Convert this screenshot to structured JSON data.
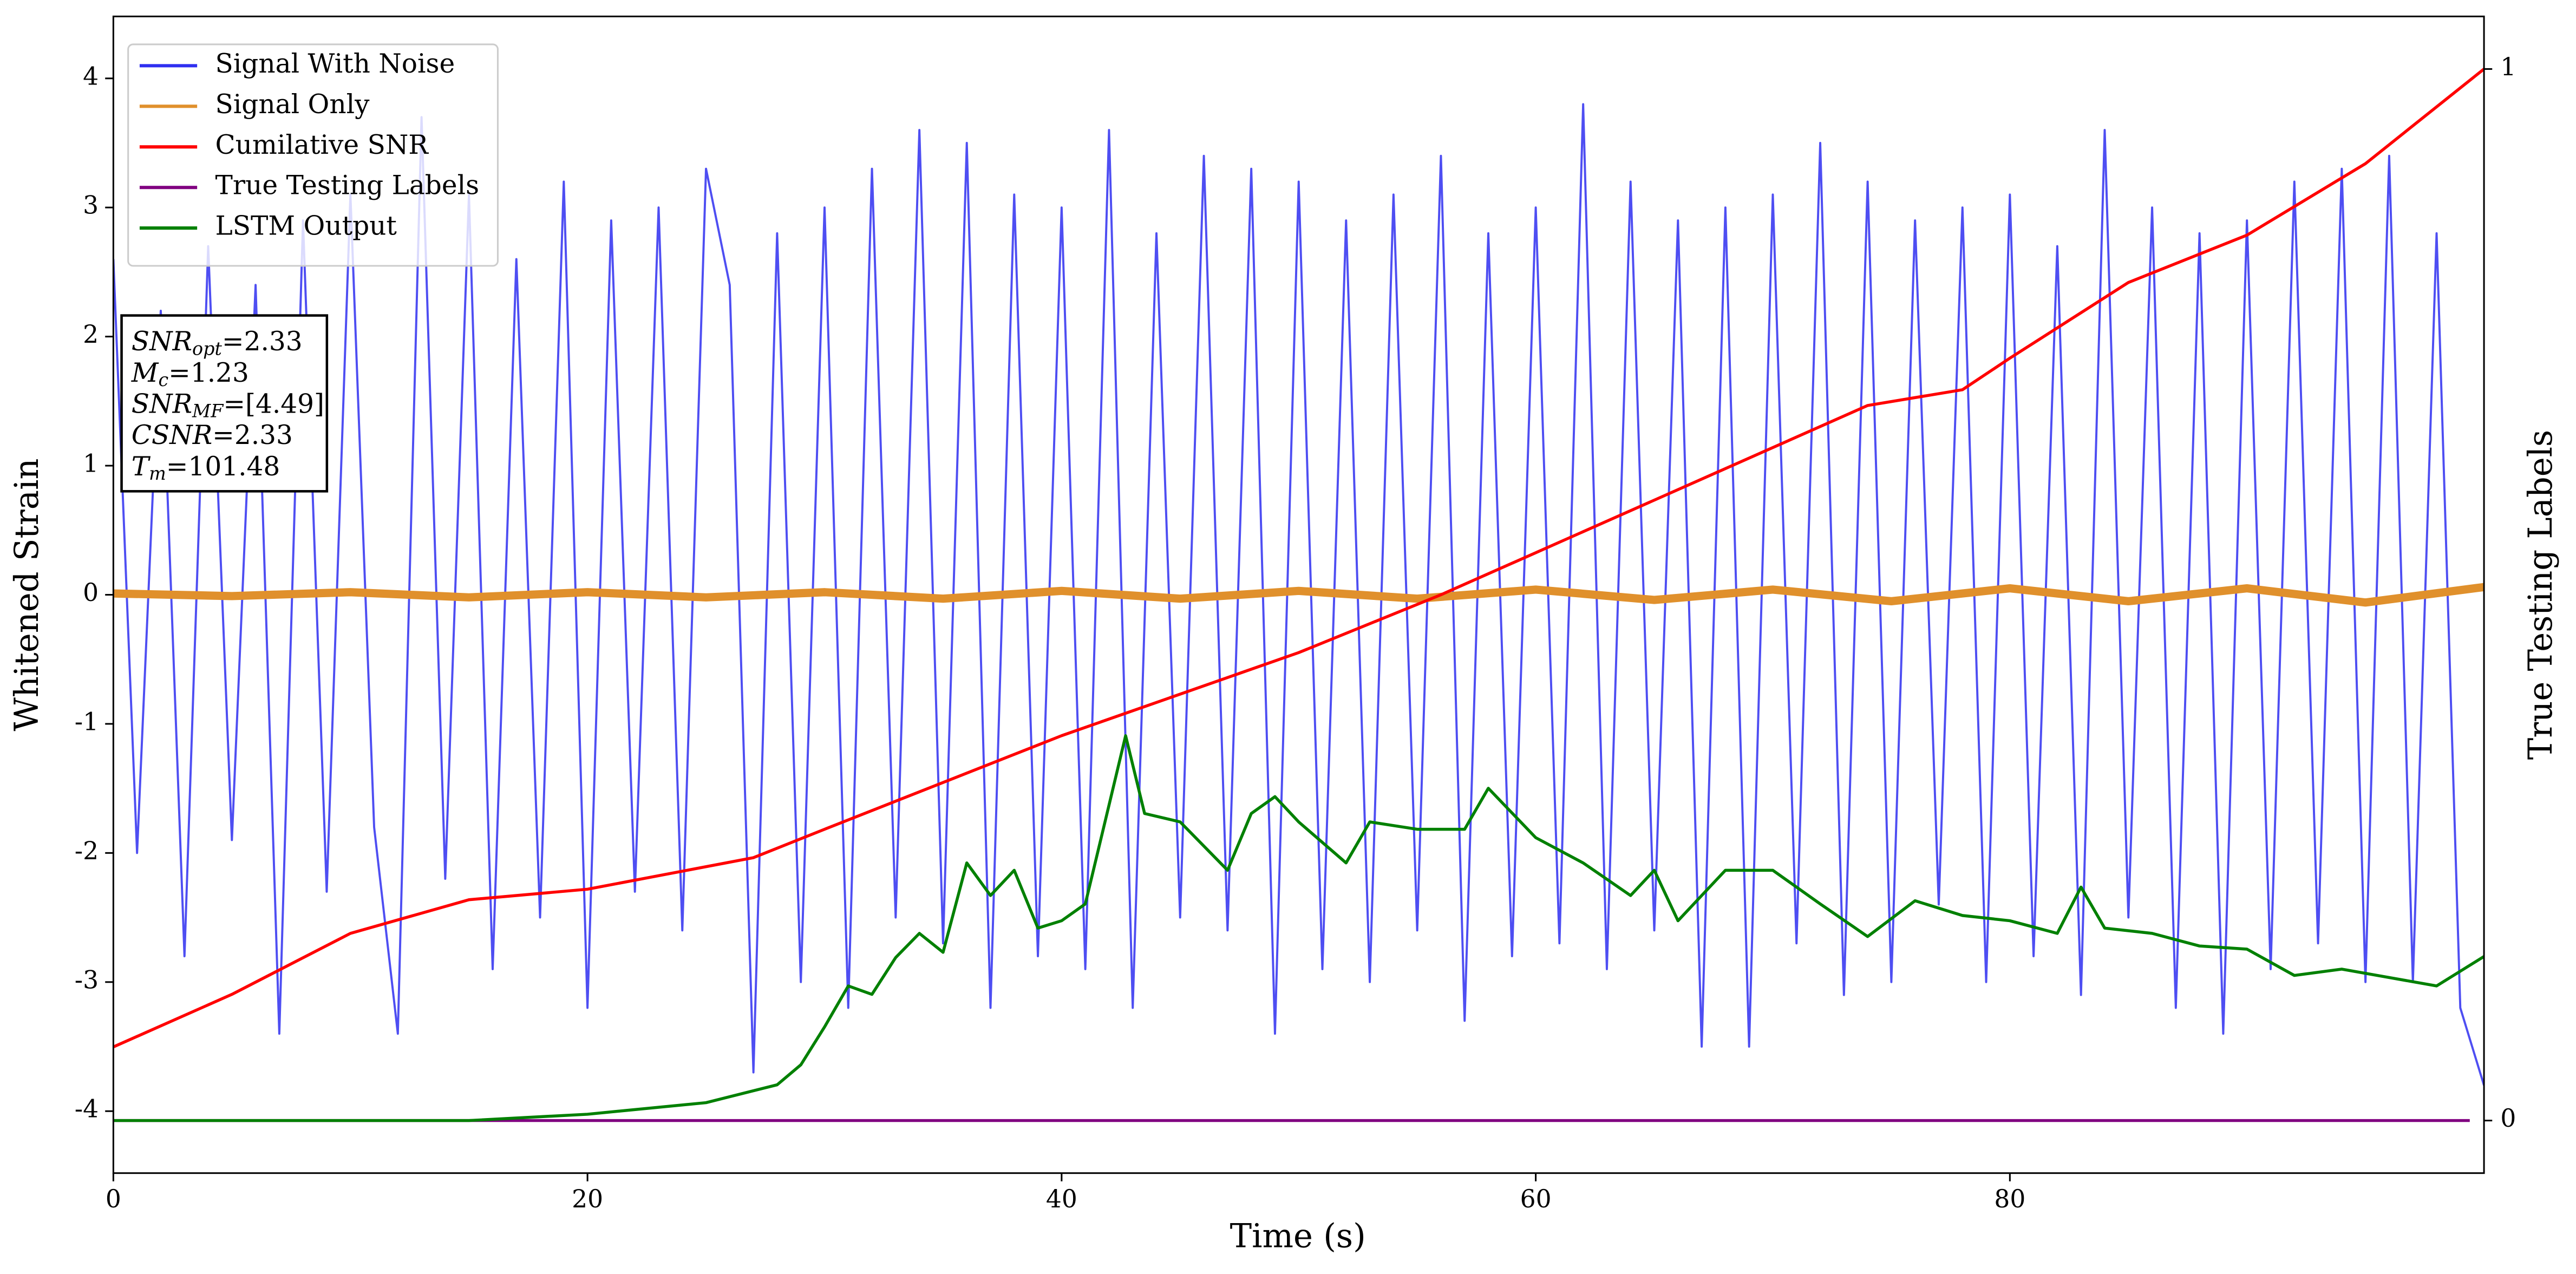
{
  "chart_data": {
    "type": "line",
    "xlabel": "Time (s)",
    "ylabel": "Whitened Strain",
    "y2label": "True Testing Labels",
    "xlim": [
      0,
      100
    ],
    "xticks": [
      0,
      20,
      40,
      60,
      80
    ],
    "ylim": [
      -4.48,
      4.48
    ],
    "yticks": [
      -4,
      -3,
      -2,
      -1,
      0,
      1,
      2,
      3,
      4
    ],
    "y2lim": [
      -0.05,
      1.05
    ],
    "y2ticks": [
      0,
      1
    ],
    "grid": false,
    "legend": "upper left",
    "annotation": [
      {
        "symbol": "SNR",
        "sub": "opt",
        "text": "=2.33"
      },
      {
        "symbol": "M",
        "sub": "c",
        "text": "=1.23"
      },
      {
        "symbol": "SNR",
        "sub": "MF",
        "text": "=[4.49]"
      },
      {
        "symbol": "CSNR",
        "text": "=2.33"
      },
      {
        "symbol": "T",
        "sub": "m",
        "text": "=101.48"
      }
    ],
    "series": [
      {
        "name": "Signal With Noise",
        "color": "#2f2ff0",
        "x": [
          0,
          1,
          2,
          3,
          4,
          5,
          6,
          7,
          8,
          9,
          10,
          11,
          12,
          13,
          14,
          15,
          16,
          17,
          18,
          19,
          20,
          21,
          22,
          23,
          24,
          25,
          26,
          27,
          28,
          29,
          30,
          31,
          32,
          33,
          34,
          35,
          36,
          37,
          38,
          39,
          40,
          41,
          42,
          43,
          44,
          45,
          46,
          47,
          48,
          49,
          50,
          51,
          52,
          53,
          54,
          55,
          56,
          57,
          58,
          59,
          60,
          61,
          62,
          63,
          64,
          65,
          66,
          67,
          68,
          69,
          70,
          71,
          72,
          73,
          74,
          75,
          76,
          77,
          78,
          79,
          80,
          81,
          82,
          83,
          84,
          85,
          86,
          87,
          88,
          89,
          90,
          91,
          92,
          93,
          94,
          95,
          96,
          97,
          98,
          99,
          100
        ],
        "values": [
          2.6,
          -2.0,
          2.2,
          -2.8,
          2.7,
          -1.9,
          2.4,
          -3.4,
          2.9,
          -2.3,
          3.1,
          -1.8,
          -3.4,
          3.7,
          -2.2,
          3.1,
          -2.9,
          2.6,
          -2.5,
          3.2,
          -3.2,
          2.9,
          -2.3,
          3.0,
          -2.6,
          3.3,
          2.4,
          -3.7,
          2.8,
          -3.0,
          3.0,
          -3.2,
          3.3,
          -2.5,
          3.6,
          -2.7,
          3.5,
          -3.2,
          3.1,
          -2.8,
          3.0,
          -2.9,
          3.6,
          -3.2,
          2.8,
          -2.5,
          3.4,
          -2.6,
          3.3,
          -3.4,
          3.2,
          -2.9,
          2.9,
          -3.0,
          3.1,
          -2.6,
          3.4,
          -3.3,
          2.8,
          -2.8,
          3.0,
          -2.7,
          3.8,
          -2.9,
          3.2,
          -2.6,
          2.9,
          -3.5,
          3.0,
          -3.5,
          3.1,
          -2.7,
          3.5,
          -3.1,
          3.2,
          -3.0,
          2.9,
          -2.4,
          3.0,
          -3.0,
          3.1,
          -2.8,
          2.7,
          -3.1,
          3.6,
          -2.5,
          3.0,
          -3.2,
          2.8,
          -3.4,
          2.9,
          -2.9,
          3.2,
          -2.7,
          3.3,
          -3.0,
          3.4,
          -3.0,
          2.8,
          -3.2,
          -3.8
        ]
      },
      {
        "name": "Signal Only",
        "color": "#e0902c",
        "x": [
          0,
          5,
          10,
          15,
          20,
          25,
          30,
          35,
          40,
          45,
          50,
          55,
          60,
          65,
          70,
          75,
          80,
          85,
          90,
          95,
          100
        ],
        "values": [
          0.01,
          -0.01,
          0.02,
          -0.02,
          0.02,
          -0.02,
          0.02,
          -0.03,
          0.03,
          -0.03,
          0.03,
          -0.03,
          0.04,
          -0.04,
          0.04,
          -0.05,
          0.05,
          -0.05,
          0.05,
          -0.06,
          0.06
        ]
      },
      {
        "name": "Cumilative SNR",
        "color": "#ff0000",
        "axis": "y2",
        "x": [
          0,
          5,
          10,
          15,
          20,
          27,
          30,
          40,
          50,
          56,
          60,
          70,
          74,
          78,
          80,
          85,
          90,
          95,
          100
        ],
        "values": [
          0.07,
          0.12,
          0.178,
          0.21,
          0.22,
          0.25,
          0.277,
          0.366,
          0.445,
          0.5,
          0.54,
          0.64,
          0.68,
          0.695,
          0.725,
          0.797,
          0.842,
          0.91,
          1.0
        ]
      },
      {
        "name": "True Testing Labels",
        "color": "#800080",
        "axis": "y2",
        "x": [
          0,
          99.4
        ],
        "values": [
          0,
          0
        ]
      },
      {
        "name": "LSTM Output",
        "color": "#008000",
        "axis": "y2",
        "x": [
          0,
          15,
          20,
          25,
          28,
          29,
          30,
          31,
          32,
          33,
          34,
          35,
          36,
          37,
          38,
          39,
          40,
          41,
          42,
          42.7,
          43.5,
          45,
          47,
          48,
          49,
          50,
          52,
          53,
          55,
          57,
          58,
          60,
          62,
          64,
          65,
          66,
          68,
          70,
          72,
          74,
          76,
          78,
          80,
          82,
          83,
          84,
          86,
          88,
          90,
          92,
          94,
          96,
          98,
          100
        ],
        "values": [
          0,
          0,
          0.006,
          0.017,
          0.034,
          0.053,
          0.089,
          0.128,
          0.12,
          0.155,
          0.178,
          0.16,
          0.245,
          0.214,
          0.238,
          0.183,
          0.19,
          0.206,
          0.3,
          0.366,
          0.292,
          0.284,
          0.238,
          0.292,
          0.308,
          0.284,
          0.245,
          0.284,
          0.277,
          0.277,
          0.316,
          0.269,
          0.245,
          0.214,
          0.238,
          0.19,
          0.238,
          0.238,
          0.206,
          0.175,
          0.209,
          0.195,
          0.19,
          0.178,
          0.222,
          0.183,
          0.178,
          0.166,
          0.163,
          0.138,
          0.144,
          0.136,
          0.128,
          0.156
        ]
      }
    ]
  }
}
